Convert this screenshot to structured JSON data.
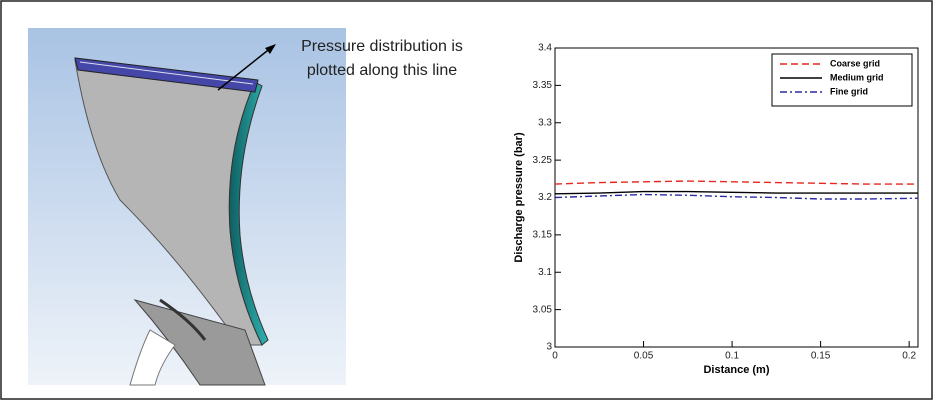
{
  "annotation": [
    "Pressure distribution is",
    "plotted along this line"
  ],
  "chart_data": {
    "type": "line",
    "xlabel": "Distance (m)",
    "ylabel": "Discharge pressure (bar)",
    "x": [
      0,
      0.025,
      0.05,
      0.075,
      0.1,
      0.125,
      0.15,
      0.175,
      0.205
    ],
    "series": [
      {
        "name": "Coarse grid",
        "color": "#e8251f",
        "dash": "dashed",
        "values": [
          3.218,
          3.22,
          3.221,
          3.222,
          3.221,
          3.22,
          3.219,
          3.218,
          3.218
        ]
      },
      {
        "name": "Medium grid",
        "color": "#000000",
        "dash": "solid",
        "values": [
          3.205,
          3.206,
          3.208,
          3.208,
          3.207,
          3.206,
          3.206,
          3.206,
          3.206
        ]
      },
      {
        "name": "Fine grid",
        "color": "#2a2aa8",
        "dash": "dashdot",
        "values": [
          3.2,
          3.202,
          3.204,
          3.203,
          3.201,
          3.2,
          3.198,
          3.198,
          3.199
        ]
      }
    ],
    "xlim": [
      0,
      0.205
    ],
    "xticks": [
      0,
      0.05,
      0.1,
      0.15,
      0.2
    ],
    "ylim": [
      3,
      3.4
    ],
    "yticks": [
      3,
      3.05,
      3.1,
      3.15,
      3.2,
      3.25,
      3.3,
      3.35,
      3.4
    ],
    "legend": "top-right",
    "grid": false
  }
}
